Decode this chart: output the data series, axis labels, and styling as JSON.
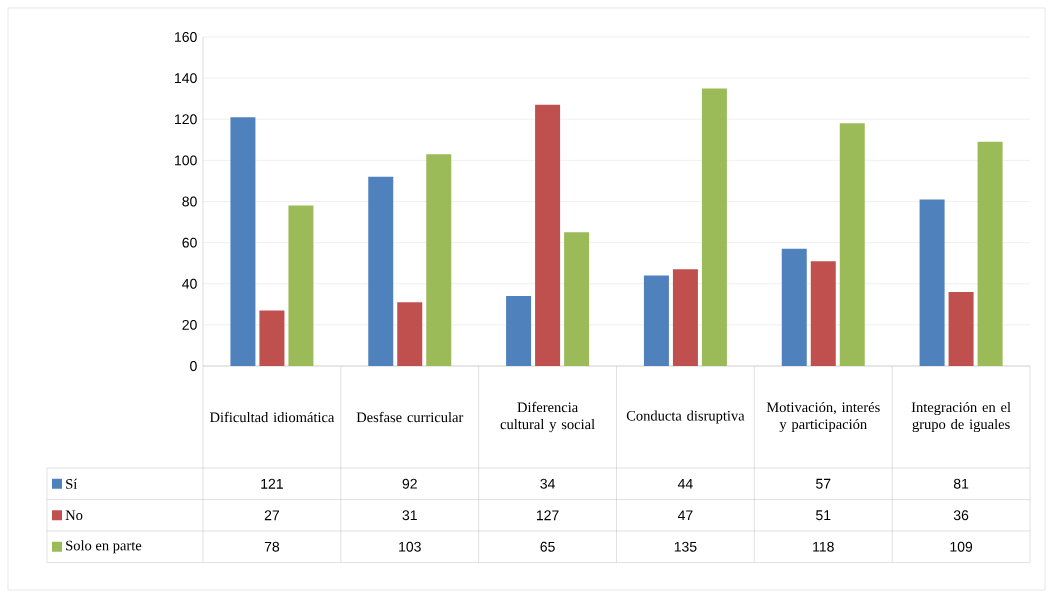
{
  "chart_data": {
    "type": "bar",
    "categories": [
      "Dificultad idiomática",
      "Desfase curricular",
      "Diferencia cultural y social",
      "Conducta disruptiva",
      "Motivación, interés y participación",
      "Integración en el grupo de iguales"
    ],
    "series": [
      {
        "name": "Sí",
        "color": "#4f81bd",
        "values": [
          121,
          92,
          34,
          44,
          57,
          81
        ]
      },
      {
        "name": "No",
        "color": "#c0504d",
        "values": [
          27,
          31,
          127,
          47,
          51,
          36
        ]
      },
      {
        "name": "Solo en parte",
        "color": "#9bbb59",
        "values": [
          78,
          103,
          65,
          135,
          118,
          109
        ]
      }
    ],
    "ylim": [
      0,
      160
    ],
    "yticks": [
      0,
      20,
      40,
      60,
      80,
      100,
      120,
      140,
      160
    ],
    "grid": "y",
    "legend": "bottom",
    "data_labels": true
  }
}
